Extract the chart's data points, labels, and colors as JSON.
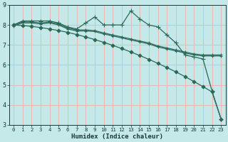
{
  "xlabel": "Humidex (Indice chaleur)",
  "background_color": "#c5e8e8",
  "grid_color": "#e8b8b8",
  "line_color": "#2a6858",
  "xlim": [
    -0.5,
    23.5
  ],
  "ylim": [
    3,
    9
  ],
  "yticks": [
    3,
    4,
    5,
    6,
    7,
    8,
    9
  ],
  "xticks": [
    0,
    1,
    2,
    3,
    4,
    5,
    6,
    7,
    8,
    9,
    10,
    11,
    12,
    13,
    14,
    15,
    16,
    17,
    18,
    19,
    20,
    21,
    22,
    23
  ],
  "series": [
    {
      "x": [
        0,
        1,
        2,
        3,
        4,
        5,
        6,
        7,
        8,
        9,
        10,
        11,
        12,
        13,
        14,
        15,
        16,
        17,
        18,
        19,
        20,
        21,
        22,
        23
      ],
      "y": [
        8.0,
        8.2,
        8.2,
        8.2,
        8.2,
        8.1,
        7.9,
        7.8,
        8.1,
        8.4,
        8.0,
        8.0,
        8.0,
        8.7,
        8.3,
        8.0,
        7.9,
        7.5,
        7.1,
        6.5,
        6.4,
        6.3,
        4.7,
        3.3
      ],
      "marker": "+",
      "markersize": 4,
      "linewidth": 0.9
    },
    {
      "x": [
        0,
        1,
        2,
        3,
        4,
        5,
        6,
        7,
        8,
        9,
        10,
        11,
        12,
        13,
        14,
        15,
        16,
        17,
        18,
        19,
        20,
        21,
        22,
        23
      ],
      "y": [
        8.0,
        8.15,
        8.15,
        8.1,
        8.15,
        8.05,
        7.85,
        7.75,
        7.75,
        7.72,
        7.6,
        7.5,
        7.4,
        7.3,
        7.2,
        7.1,
        6.95,
        6.85,
        6.75,
        6.65,
        6.55,
        6.5,
        6.5,
        6.5
      ],
      "marker": "+",
      "markersize": 3,
      "linewidth": 0.9
    },
    {
      "x": [
        0,
        1,
        2,
        3,
        4,
        5,
        6,
        7,
        8,
        9,
        10,
        11,
        12,
        13,
        14,
        15,
        16,
        17,
        18,
        19,
        20,
        21,
        22,
        23
      ],
      "y": [
        7.95,
        8.1,
        8.1,
        8.05,
        8.1,
        8.0,
        7.8,
        7.7,
        7.7,
        7.67,
        7.55,
        7.45,
        7.35,
        7.25,
        7.15,
        7.05,
        6.9,
        6.8,
        6.7,
        6.6,
        6.5,
        6.45,
        6.45,
        6.45
      ],
      "marker": "+",
      "markersize": 3,
      "linewidth": 0.9
    },
    {
      "x": [
        0,
        1,
        2,
        3,
        4,
        5,
        6,
        7,
        8,
        9,
        10,
        11,
        12,
        13,
        14,
        15,
        16,
        17,
        18,
        19,
        20,
        21,
        22,
        23
      ],
      "y": [
        8.0,
        7.97,
        7.93,
        7.87,
        7.8,
        7.72,
        7.63,
        7.52,
        7.4,
        7.27,
        7.13,
        6.98,
        6.82,
        6.65,
        6.47,
        6.28,
        6.08,
        5.87,
        5.65,
        5.42,
        5.17,
        4.92,
        4.65,
        3.3
      ],
      "marker": "D",
      "markersize": 2.5,
      "linewidth": 0.9
    }
  ]
}
